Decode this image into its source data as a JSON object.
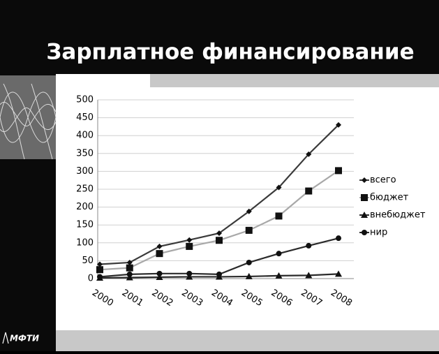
{
  "slide_title": "Зарплатное финансирование",
  "logo": "МФТИ",
  "chart_data": {
    "type": "line",
    "categories": [
      "2000",
      "2001",
      "2002",
      "2003",
      "2004",
      "2005",
      "2006",
      "2007",
      "2008"
    ],
    "series": [
      {
        "name": "всего",
        "color": "#3a3a3a",
        "marker": "diamond",
        "values": [
          40,
          45,
          90,
          108,
          127,
          188,
          255,
          348,
          430
        ]
      },
      {
        "name": "бюджет",
        "color": "#a8a8a8",
        "marker": "square",
        "values": [
          25,
          30,
          70,
          90,
          107,
          135,
          175,
          245,
          302
        ]
      },
      {
        "name": "внебюджет",
        "color": "#2a2a2a",
        "marker": "triangle",
        "values": [
          2,
          3,
          4,
          5,
          5,
          6,
          8,
          9,
          13
        ]
      },
      {
        "name": "нир",
        "color": "#2a2a2a",
        "marker": "circle",
        "values": [
          5,
          12,
          14,
          14,
          12,
          45,
          70,
          92,
          113
        ]
      }
    ],
    "ylim": [
      0,
      500
    ],
    "yticks": [
      0,
      50,
      100,
      150,
      200,
      250,
      300,
      350,
      400,
      450,
      500
    ],
    "grid": true,
    "legend": "right"
  }
}
